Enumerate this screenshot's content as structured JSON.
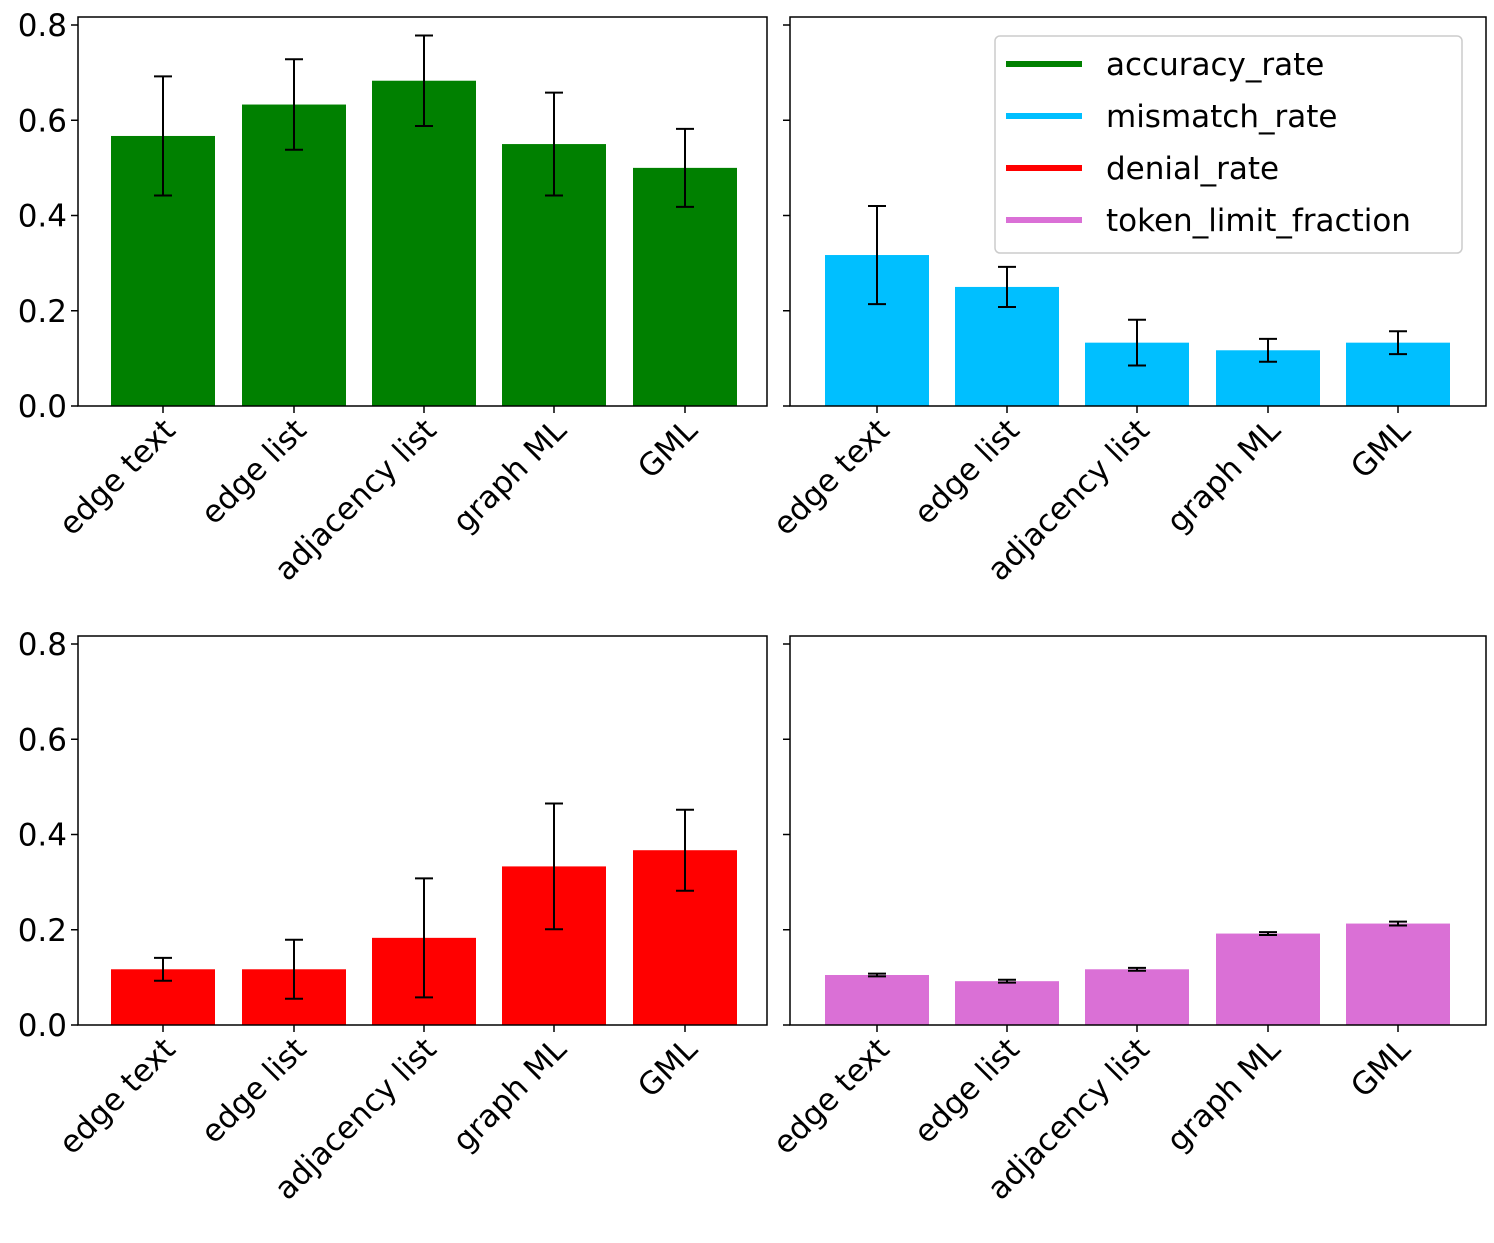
{
  "chart_data": [
    {
      "type": "bar",
      "panel": "top-left",
      "metric": "accuracy_rate",
      "color": "#008000",
      "categories": [
        "edge text",
        "edge list",
        "adjacency list",
        "graph ML",
        "GML"
      ],
      "values": [
        0.567,
        0.633,
        0.683,
        0.55,
        0.5
      ],
      "errors": [
        0.125,
        0.095,
        0.095,
        0.108,
        0.082
      ],
      "ylim": [
        0,
        0.8
      ],
      "yticks": [
        "0.0",
        "0.2",
        "0.4",
        "0.6",
        "0.8"
      ],
      "show_ytick_labels": true
    },
    {
      "type": "bar",
      "panel": "top-right",
      "metric": "mismatch_rate",
      "color": "#00BFFF",
      "categories": [
        "edge text",
        "edge list",
        "adjacency list",
        "graph ML",
        "GML"
      ],
      "values": [
        0.317,
        0.25,
        0.133,
        0.117,
        0.133
      ],
      "errors": [
        0.103,
        0.042,
        0.048,
        0.024,
        0.024
      ],
      "ylim": [
        0,
        0.8
      ],
      "yticks": [
        "0.0",
        "0.2",
        "0.4",
        "0.6",
        "0.8"
      ],
      "show_ytick_labels": false
    },
    {
      "type": "bar",
      "panel": "bottom-left",
      "metric": "denial_rate",
      "color": "#FF0000",
      "categories": [
        "edge text",
        "edge list",
        "adjacency list",
        "graph ML",
        "GML"
      ],
      "values": [
        0.117,
        0.117,
        0.183,
        0.333,
        0.367
      ],
      "errors": [
        0.024,
        0.062,
        0.125,
        0.132,
        0.085
      ],
      "ylim": [
        0,
        0.8
      ],
      "yticks": [
        "0.0",
        "0.2",
        "0.4",
        "0.6",
        "0.8"
      ],
      "show_ytick_labels": true
    },
    {
      "type": "bar",
      "panel": "bottom-right",
      "metric": "token_limit_fraction",
      "color": "#DA70D6",
      "categories": [
        "edge text",
        "edge list",
        "adjacency list",
        "graph ML",
        "GML"
      ],
      "values": [
        0.105,
        0.092,
        0.117,
        0.192,
        0.213
      ],
      "errors": [
        0.003,
        0.003,
        0.003,
        0.003,
        0.004
      ],
      "ylim": [
        0,
        0.8
      ],
      "yticks": [
        "0.0",
        "0.2",
        "0.4",
        "0.6",
        "0.8"
      ],
      "show_ytick_labels": false
    }
  ],
  "legend": {
    "placement": "top-right",
    "entries": [
      {
        "label": "accuracy_rate",
        "color": "#008000"
      },
      {
        "label": "mismatch_rate",
        "color": "#00BFFF"
      },
      {
        "label": "denial_rate",
        "color": "#FF0000"
      },
      {
        "label": "token_limit_fraction",
        "color": "#DA70D6"
      }
    ]
  }
}
